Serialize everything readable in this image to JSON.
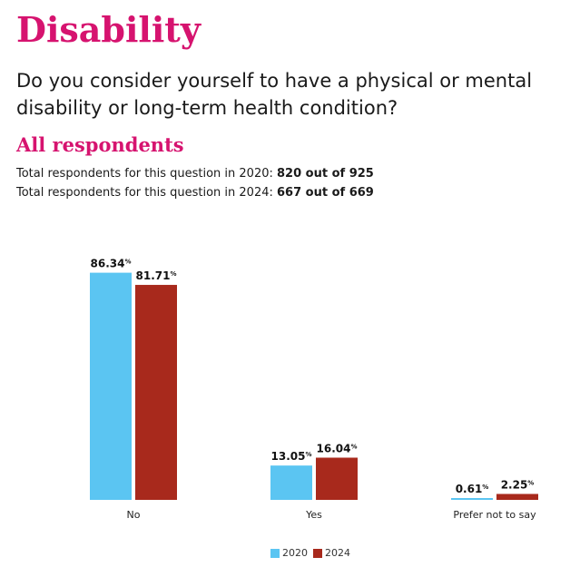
{
  "title": "Disability",
  "question": "Do you consider yourself to have a physical or mental disability or long-term health condition?",
  "subtitle": "All respondents",
  "totals": [
    {
      "label": "Total respondents for this question in 2020: ",
      "value": "820 out of 925"
    },
    {
      "label": "Total respondents for this question in 2024: ",
      "value": "667 out of 669"
    }
  ],
  "colors": {
    "title": "#d6136f",
    "series_2020": "#5bc5f2",
    "series_2024": "#a8291c"
  },
  "chart_data": {
    "type": "bar",
    "categories": [
      "No",
      "Yes",
      "Prefer not to say"
    ],
    "series": [
      {
        "name": "2020",
        "values": [
          86.34,
          13.05,
          0.61
        ],
        "labels": [
          "86.34",
          "13.05",
          "0.61"
        ]
      },
      {
        "name": "2024",
        "values": [
          81.71,
          16.04,
          2.25
        ],
        "labels": [
          "81.71",
          "16.04",
          "2.25"
        ]
      }
    ],
    "unit": "%",
    "ylim": [
      0,
      100
    ],
    "grid": false,
    "legend": "bottom"
  }
}
